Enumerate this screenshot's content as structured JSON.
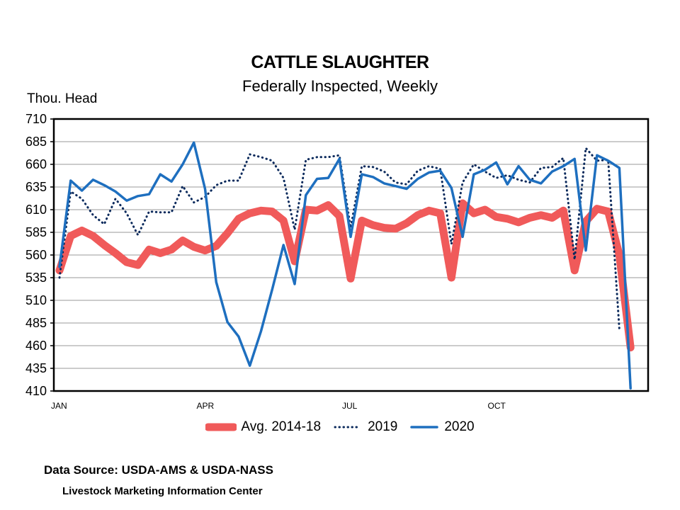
{
  "chart_data": {
    "type": "line",
    "title": "CATTLE SLAUGHTER",
    "subtitle": "Federally Inspected, Weekly",
    "ylabel": "Thou. Head",
    "ylim": [
      410,
      710
    ],
    "yticks": [
      710,
      685,
      660,
      635,
      610,
      585,
      560,
      535,
      510,
      485,
      460,
      435,
      410
    ],
    "x_week_range": [
      1,
      53
    ],
    "x_month_labels": [
      {
        "label": "JAN",
        "week": 1
      },
      {
        "label": "APR",
        "week": 14
      },
      {
        "label": "JUL",
        "week": 27
      },
      {
        "label": "OCT",
        "week": 40
      }
    ],
    "grid": "horizontal",
    "legend_position": "bottom",
    "series": [
      {
        "name": "Avg. 2014-18",
        "color": "#f05a5a",
        "style": "thick",
        "values": [
          543,
          581,
          587,
          581,
          571,
          562,
          552,
          549,
          566,
          562,
          566,
          576,
          569,
          565,
          570,
          584,
          600,
          606,
          609,
          608,
          598,
          553,
          610,
          609,
          615,
          603,
          534,
          598,
          593,
          590,
          589,
          595,
          604,
          609,
          606,
          535,
          617,
          606,
          610,
          602,
          600,
          596,
          601,
          604,
          601,
          609,
          543,
          597,
          611,
          608,
          560,
          458
        ]
      },
      {
        "name": "2019",
        "color": "#0b2a5c",
        "style": "dotted",
        "values": [
          535,
          630,
          622,
          604,
          594,
          622,
          606,
          582,
          608,
          607,
          607,
          636,
          618,
          624,
          637,
          642,
          642,
          671,
          668,
          664,
          645,
          588,
          665,
          668,
          668,
          670,
          590,
          658,
          657,
          652,
          640,
          638,
          653,
          658,
          655,
          572,
          640,
          660,
          652,
          645,
          648,
          643,
          640,
          656,
          657,
          667,
          555,
          678,
          664,
          665,
          478
        ]
      },
      {
        "name": "2020",
        "color": "#1e6fbf",
        "style": "solid",
        "values": [
          547,
          642,
          631,
          643,
          637,
          630,
          620,
          625,
          627,
          649,
          641,
          660,
          684,
          633,
          530,
          486,
          470,
          438,
          476,
          522,
          571,
          528,
          626,
          644,
          645,
          666,
          580,
          649,
          646,
          639,
          636,
          633,
          644,
          651,
          653,
          634,
          580,
          649,
          654,
          662,
          638,
          658,
          643,
          639,
          652,
          658,
          666,
          565,
          670,
          664,
          656,
          413
        ]
      }
    ]
  },
  "footer": {
    "source": "Data Source:  USDA-AMS & USDA-NASS",
    "publisher": "Livestock Marketing Information Center"
  }
}
